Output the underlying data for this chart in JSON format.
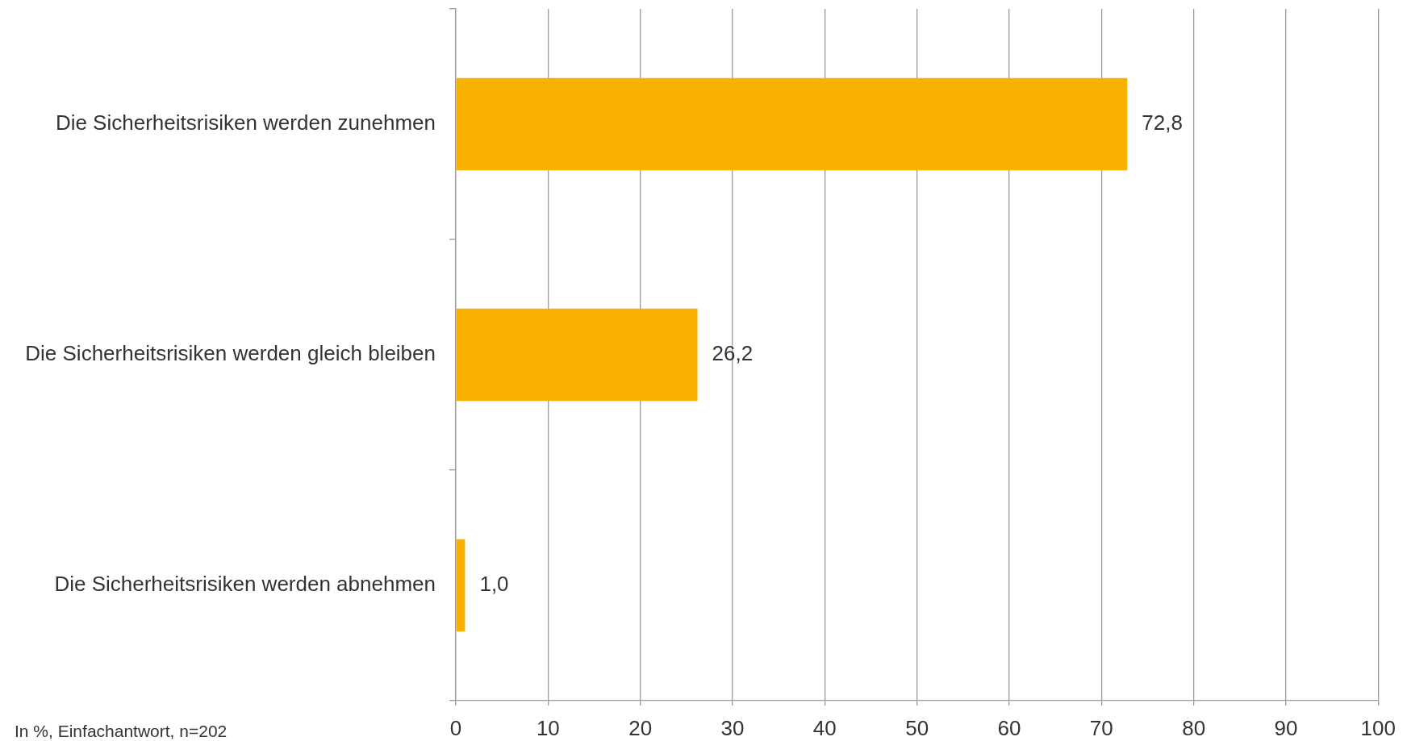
{
  "chart_data": {
    "type": "bar",
    "orientation": "horizontal",
    "categories": [
      "Die Sicherheitsrisiken werden zunehmen",
      "Die Sicherheitsrisiken werden gleich bleiben",
      "Die Sicherheitsrisiken werden abnehmen"
    ],
    "values": [
      72.8,
      26.2,
      1.0
    ],
    "color": "#f8b100",
    "value_labels": [
      "72,8",
      "26,2",
      "1,0"
    ],
    "xlim": [
      0,
      100
    ],
    "xticks": [
      0,
      10,
      20,
      30,
      40,
      50,
      60,
      70,
      80,
      90,
      100
    ],
    "grid": "x",
    "annotations": [
      "In %, Einfachantwort, n=202"
    ]
  }
}
